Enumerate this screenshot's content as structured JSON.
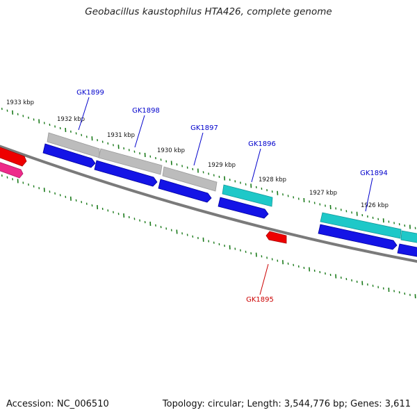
{
  "title": "Geobacillus kaustophilus HTA426, complete genome",
  "footer": {
    "accession": "Accession: NC_006510",
    "summary": "Topology: circular; Length: 3,544,776 bp; Genes: 3,611"
  },
  "kbp_labels": [
    {
      "text": "1933 kbp"
    },
    {
      "text": "1932 kbp"
    },
    {
      "text": "1931 kbp"
    },
    {
      "text": "1930 kbp"
    },
    {
      "text": "1929 kbp"
    },
    {
      "text": "1928 kbp"
    },
    {
      "text": "1927 kbp"
    },
    {
      "text": "1926 kbp"
    }
  ],
  "genes": [
    {
      "label": "GK1899",
      "color": "#0000cc"
    },
    {
      "label": "GK1898",
      "color": "#0000cc"
    },
    {
      "label": "GK1897",
      "color": "#0000cc"
    },
    {
      "label": "GK1896",
      "color": "#0000cc"
    },
    {
      "label": "GK1894",
      "color": "#0000cc"
    },
    {
      "label": "GK1895",
      "color": "#cc0000"
    }
  ],
  "colors": {
    "backbone": "#7a7a7a",
    "ticks": "#1a7a1a",
    "cds_blue": "#1414e6",
    "gene_gray": "#b8b8b8",
    "gene_cyan": "#1ec8c8",
    "gene_red": "#ee0000",
    "gene_pink": "#ee2a8a"
  }
}
